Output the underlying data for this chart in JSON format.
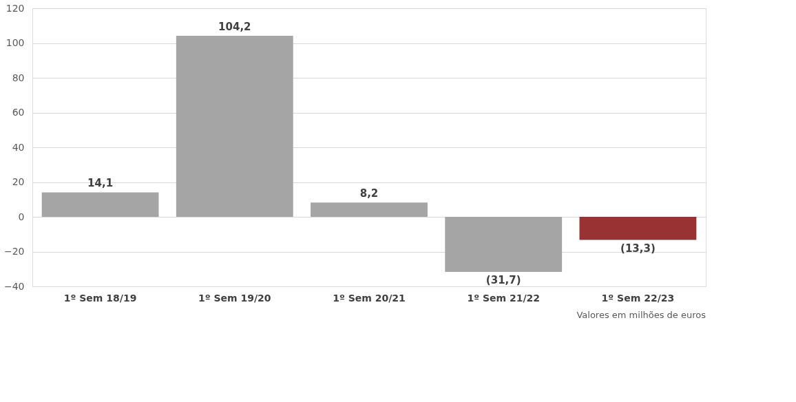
{
  "chart_data": {
    "type": "bar",
    "categories": [
      "1º Sem 18/19",
      "1º Sem 19/20",
      "1º Sem 20/21",
      "1º Sem 21/22",
      "1º Sem 22/23"
    ],
    "values": [
      14.1,
      104.2,
      8.2,
      -31.7,
      -13.3
    ],
    "colors": [
      "#a5a5a5",
      "#a5a5a5",
      "#a5a5a5",
      "#a5a5a5",
      "#993333"
    ],
    "value_labels": [
      "14,1",
      "104,2",
      "8,2",
      "(31,7)",
      "(13,3)"
    ],
    "ylim": [
      -40,
      120
    ],
    "yticks": [
      -40,
      -20,
      0,
      20,
      40,
      60,
      80,
      100,
      120
    ],
    "grid": "y",
    "annotations": [
      "Valores em milhões de euros"
    ]
  }
}
